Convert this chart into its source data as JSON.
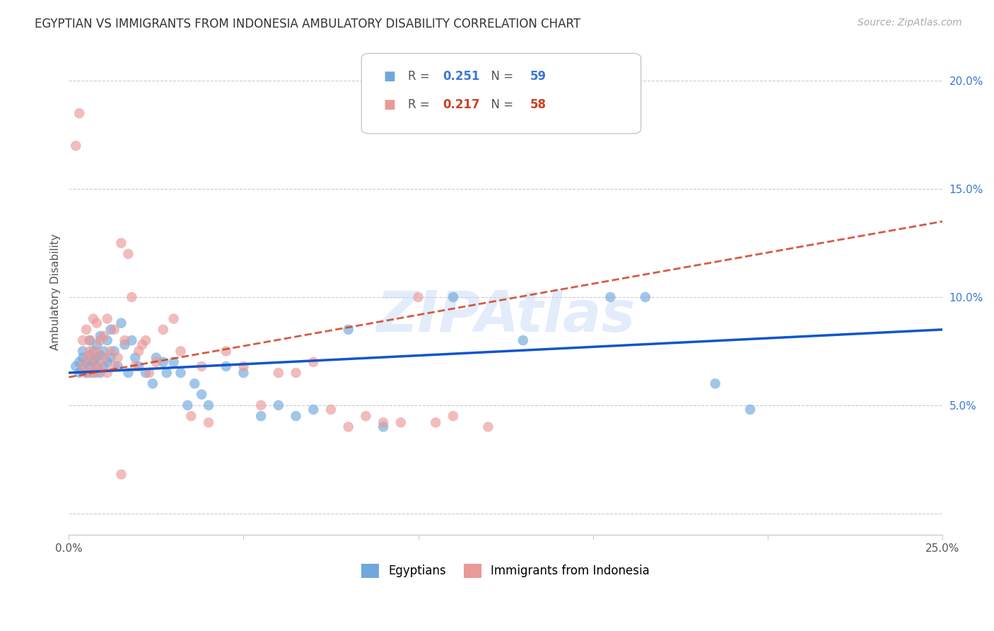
{
  "title": "EGYPTIAN VS IMMIGRANTS FROM INDONESIA AMBULATORY DISABILITY CORRELATION CHART",
  "source": "Source: ZipAtlas.com",
  "ylabel": "Ambulatory Disability",
  "xlim": [
    0.0,
    0.25
  ],
  "ylim": [
    -0.01,
    0.215
  ],
  "yticks": [
    0.0,
    0.05,
    0.1,
    0.15,
    0.2
  ],
  "ytick_labels": [
    "",
    "5.0%",
    "10.0%",
    "15.0%",
    "20.0%"
  ],
  "xticks": [
    0.0,
    0.05,
    0.1,
    0.15,
    0.2,
    0.25
  ],
  "xtick_labels": [
    "0.0%",
    "",
    "",
    "",
    "",
    "25.0%"
  ],
  "blue_color": "#6fa8dc",
  "pink_color": "#ea9999",
  "blue_line_color": "#1155cc",
  "pink_line_color": "#cc4125",
  "R_blue": 0.251,
  "N_blue": 59,
  "R_pink": 0.217,
  "N_pink": 58,
  "legend_label_blue": "Egyptians",
  "legend_label_pink": "Immigrants from Indonesia",
  "watermark": "ZIPAtlas",
  "blue_line_x": [
    0.0,
    0.25
  ],
  "blue_line_y": [
    0.065,
    0.085
  ],
  "pink_line_x": [
    0.0,
    0.25
  ],
  "pink_line_y": [
    0.063,
    0.135
  ],
  "blue_points_x": [
    0.002,
    0.003,
    0.003,
    0.004,
    0.004,
    0.004,
    0.005,
    0.005,
    0.006,
    0.006,
    0.006,
    0.007,
    0.007,
    0.007,
    0.008,
    0.008,
    0.008,
    0.009,
    0.009,
    0.009,
    0.01,
    0.01,
    0.011,
    0.011,
    0.012,
    0.012,
    0.013,
    0.014,
    0.015,
    0.016,
    0.017,
    0.018,
    0.019,
    0.02,
    0.022,
    0.024,
    0.025,
    0.027,
    0.028,
    0.03,
    0.032,
    0.034,
    0.036,
    0.038,
    0.04,
    0.045,
    0.05,
    0.055,
    0.06,
    0.065,
    0.07,
    0.08,
    0.09,
    0.11,
    0.13,
    0.155,
    0.165,
    0.185,
    0.195
  ],
  "blue_points_y": [
    0.068,
    0.07,
    0.065,
    0.072,
    0.067,
    0.075,
    0.07,
    0.065,
    0.073,
    0.068,
    0.08,
    0.065,
    0.075,
    0.07,
    0.072,
    0.068,
    0.078,
    0.065,
    0.073,
    0.082,
    0.075,
    0.068,
    0.08,
    0.07,
    0.072,
    0.085,
    0.075,
    0.068,
    0.088,
    0.078,
    0.065,
    0.08,
    0.072,
    0.068,
    0.065,
    0.06,
    0.072,
    0.07,
    0.065,
    0.07,
    0.065,
    0.05,
    0.06,
    0.055,
    0.05,
    0.068,
    0.065,
    0.045,
    0.05,
    0.045,
    0.048,
    0.085,
    0.04,
    0.1,
    0.08,
    0.1,
    0.1,
    0.06,
    0.048
  ],
  "pink_points_x": [
    0.002,
    0.003,
    0.004,
    0.004,
    0.005,
    0.005,
    0.005,
    0.006,
    0.006,
    0.006,
    0.007,
    0.007,
    0.007,
    0.008,
    0.008,
    0.008,
    0.009,
    0.009,
    0.01,
    0.01,
    0.011,
    0.011,
    0.012,
    0.013,
    0.013,
    0.014,
    0.015,
    0.016,
    0.017,
    0.018,
    0.019,
    0.02,
    0.021,
    0.022,
    0.023,
    0.025,
    0.027,
    0.03,
    0.032,
    0.035,
    0.038,
    0.04,
    0.045,
    0.05,
    0.055,
    0.06,
    0.065,
    0.07,
    0.075,
    0.08,
    0.085,
    0.09,
    0.095,
    0.1,
    0.105,
    0.11,
    0.12,
    0.015
  ],
  "pink_points_y": [
    0.17,
    0.185,
    0.068,
    0.08,
    0.065,
    0.085,
    0.072,
    0.065,
    0.075,
    0.08,
    0.068,
    0.09,
    0.072,
    0.065,
    0.075,
    0.088,
    0.08,
    0.068,
    0.072,
    0.082,
    0.065,
    0.09,
    0.075,
    0.068,
    0.085,
    0.072,
    0.125,
    0.08,
    0.12,
    0.1,
    0.068,
    0.075,
    0.078,
    0.08,
    0.065,
    0.07,
    0.085,
    0.09,
    0.075,
    0.045,
    0.068,
    0.042,
    0.075,
    0.068,
    0.05,
    0.065,
    0.065,
    0.07,
    0.048,
    0.04,
    0.045,
    0.042,
    0.042,
    0.1,
    0.042,
    0.045,
    0.04,
    0.018
  ]
}
